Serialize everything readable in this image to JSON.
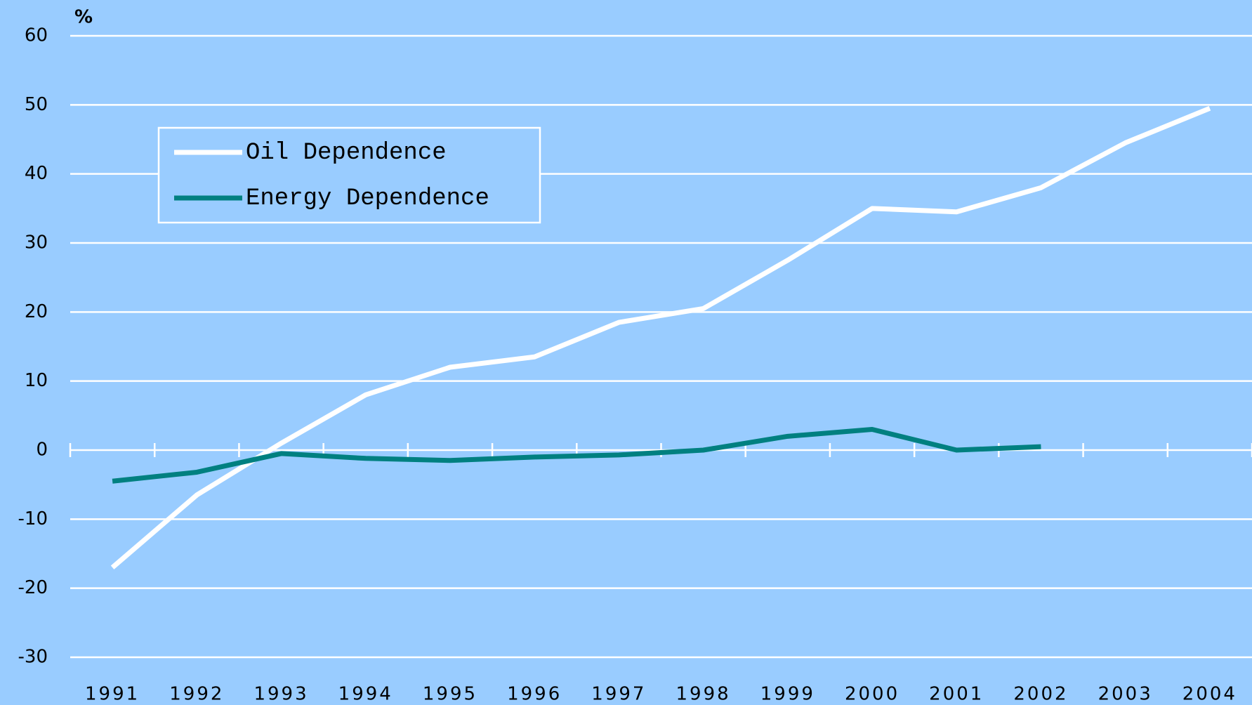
{
  "chart_data": {
    "type": "line",
    "y_label": "%",
    "categories": [
      "1991",
      "1992",
      "1993",
      "1994",
      "1995",
      "1996",
      "1997",
      "1998",
      "1999",
      "2000",
      "2001",
      "2002",
      "2003",
      "2004"
    ],
    "series": [
      {
        "name": "Oil Dependence",
        "color": "#ffffff",
        "values": [
          -17,
          -6.5,
          1,
          8,
          12,
          13.5,
          18.5,
          20.5,
          27.5,
          35,
          34.5,
          38,
          44.5,
          49.5
        ]
      },
      {
        "name": "Energy Dependence",
        "color": "#008080",
        "values": [
          -4.5,
          -3.2,
          -0.5,
          -1.2,
          -1.5,
          -1,
          -0.7,
          0,
          2,
          3,
          0,
          0.5,
          null,
          null
        ]
      }
    ],
    "ylim": [
      -30,
      60
    ],
    "yticks": [
      -30,
      -20,
      -10,
      0,
      10,
      20,
      30,
      40,
      50,
      60
    ],
    "grid": true,
    "legend": "upper left"
  }
}
